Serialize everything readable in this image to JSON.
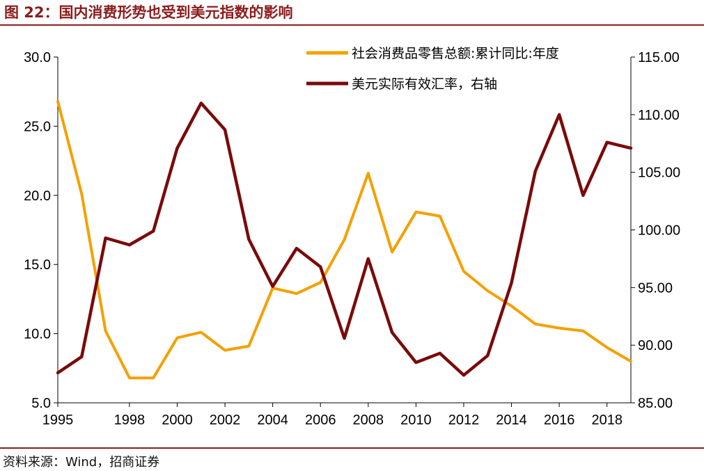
{
  "header": {
    "title": "图 22：国内消费形势也受到美元指数的影响"
  },
  "footer": {
    "source": "资料来源：Wind，招商证券"
  },
  "colors": {
    "accent": "#8b1c1c",
    "retail": "#f5a000",
    "dollar": "#7a0a0a"
  },
  "chart_data": {
    "type": "line",
    "title": "",
    "x_ticks": [
      "1995",
      "1998",
      "2000",
      "2002",
      "2004",
      "2006",
      "2008",
      "2010",
      "2012",
      "2014",
      "2016",
      "2018"
    ],
    "y_left": {
      "ticks": [
        "30.0",
        "25.0",
        "20.0",
        "15.0",
        "10.0",
        "5.0"
      ],
      "range": [
        5,
        30
      ]
    },
    "y_right": {
      "ticks": [
        "115.00",
        "110.00",
        "105.00",
        "100.00",
        "95.00",
        "90.00",
        "85.00"
      ],
      "range": [
        85,
        115
      ]
    },
    "x_range": [
      1995,
      2019
    ],
    "legend_position": "top-right",
    "grid": false,
    "series": [
      {
        "name": "社会消费品零售总额:累计同比:年度",
        "axis": "left",
        "x": [
          1995,
          1996,
          1997,
          1998,
          1999,
          2000,
          2001,
          2002,
          2003,
          2004,
          2005,
          2006,
          2007,
          2008,
          2009,
          2010,
          2011,
          2012,
          2013,
          2014,
          2015,
          2016,
          2017,
          2018,
          2019
        ],
        "values": [
          26.8,
          20.1,
          10.2,
          6.8,
          6.8,
          9.7,
          10.1,
          8.8,
          9.1,
          13.3,
          12.9,
          13.7,
          16.8,
          21.6,
          15.9,
          18.8,
          18.5,
          14.5,
          13.1,
          12.0,
          10.7,
          10.4,
          10.2,
          9.0,
          8.0
        ]
      },
      {
        "name": "美元实际有效汇率，右轴",
        "axis": "right",
        "x": [
          1995,
          1996,
          1997,
          1998,
          1999,
          2000,
          2001,
          2002,
          2003,
          2004,
          2005,
          2006,
          2007,
          2008,
          2009,
          2010,
          2011,
          2012,
          2013,
          2014,
          2015,
          2016,
          2017,
          2018,
          2019
        ],
        "values": [
          87.6,
          89.0,
          99.3,
          98.7,
          99.9,
          107.1,
          111.0,
          108.7,
          99.2,
          95.1,
          98.4,
          96.8,
          90.6,
          97.5,
          91.1,
          88.5,
          89.3,
          87.4,
          89.1,
          95.4,
          105.1,
          110.0,
          103.0,
          107.6,
          107.1
        ]
      }
    ]
  }
}
